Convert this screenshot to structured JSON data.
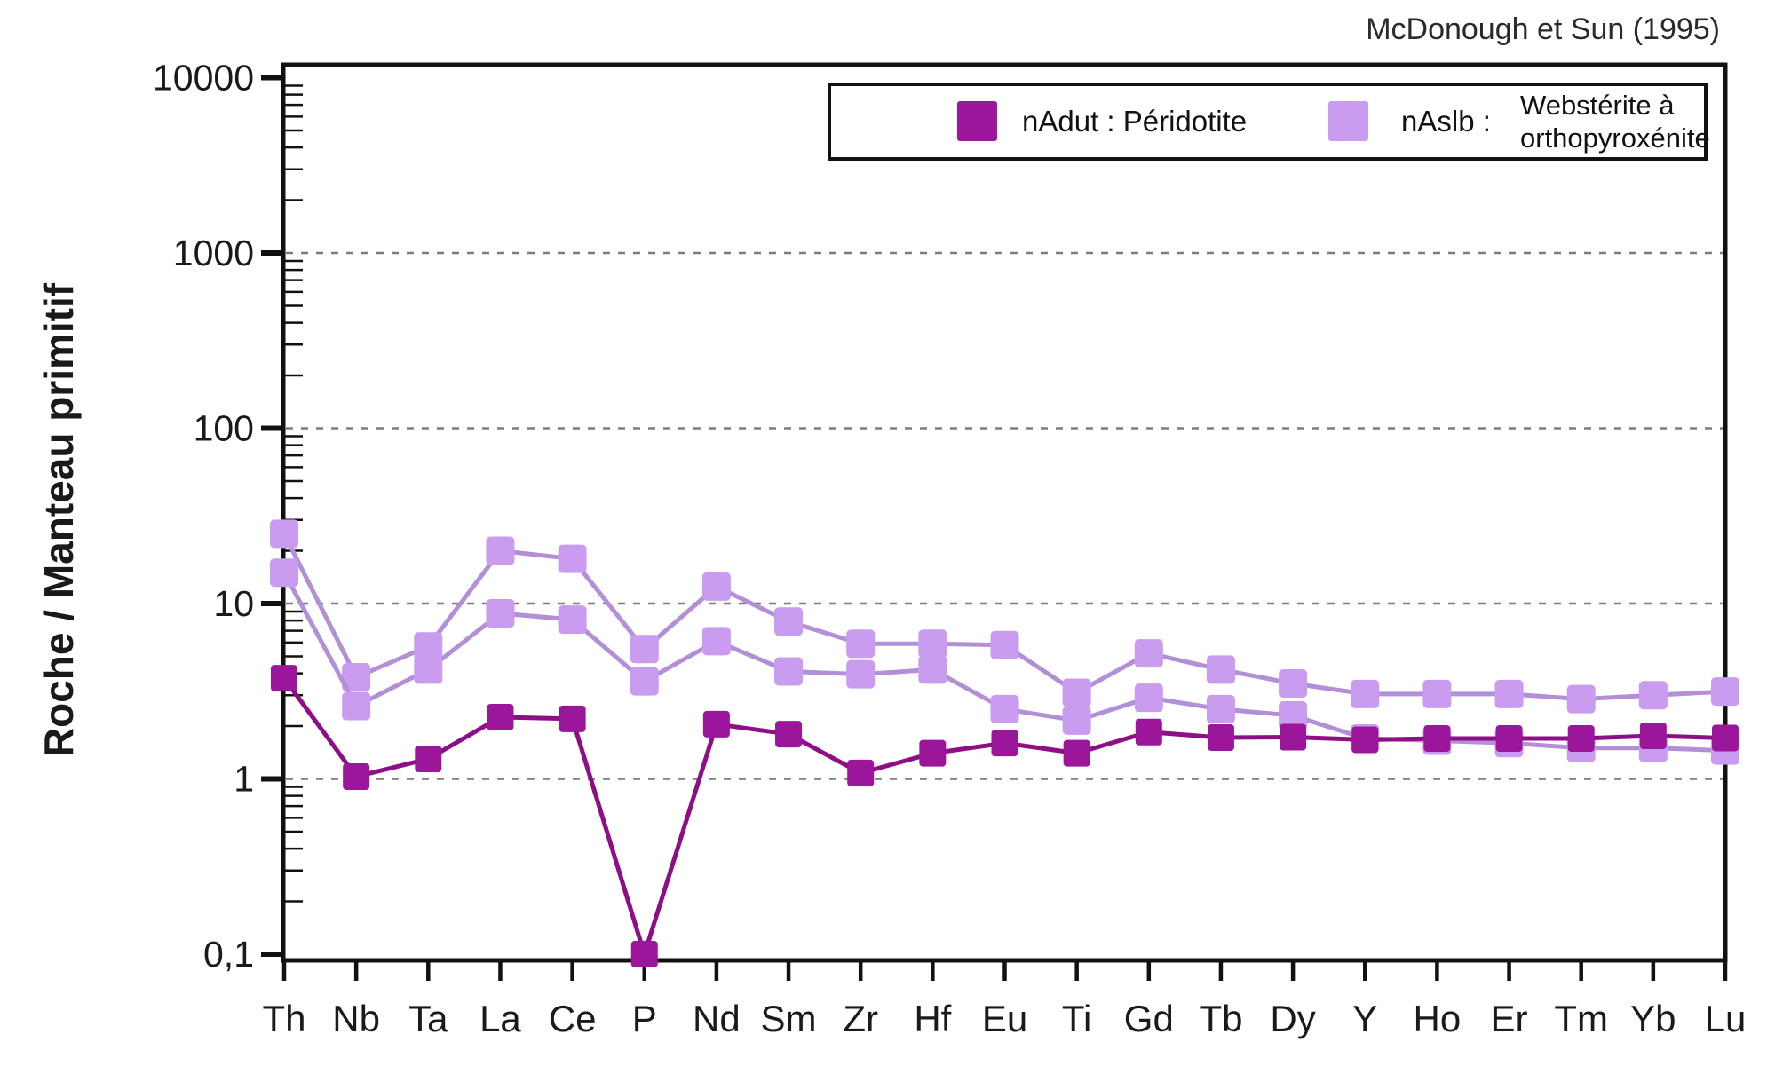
{
  "page": {
    "background": "#ffffff"
  },
  "attribution": "McDonough et Sun (1995)",
  "y_axis_title": "Roche / Manteau primitif",
  "legend": {
    "item1": {
      "label": "nAdut : Péridotite"
    },
    "item2": {
      "code": "nAslb :",
      "name_line1": "Webstérite à",
      "name_line2": "orthopyroxénite"
    }
  },
  "colors": {
    "dark_marker": "#9C169C",
    "dark_line": "#8D0E85",
    "light_marker": "#C99CEF",
    "light_line": "#B28FD6",
    "axis": "#111111",
    "grid": "#7d7d7d",
    "text": "#1a1a1a"
  },
  "chart_data": {
    "type": "line",
    "yscale": "log",
    "ylabel": "Roche / Manteau primitif",
    "annotation": "McDonough et Sun (1995)",
    "grid": "dotted horizontal gridlines",
    "legend_position": "top",
    "ylim": [
      0.09,
      11500
    ],
    "x_categories": [
      "Th",
      "Nb",
      "Ta",
      "La",
      "Ce",
      "P",
      "Nd",
      "Sm",
      "Zr",
      "Hf",
      "Eu",
      "Ti",
      "Gd",
      "Tb",
      "Dy",
      "Y",
      "Ho",
      "Er",
      "Tm",
      "Yb",
      "Lu"
    ],
    "y_tick_values": [
      10000,
      1000,
      100,
      10,
      1,
      0.1
    ],
    "y_tick_labels": [
      "10000",
      "1000",
      "100",
      "10",
      "1",
      "0,1"
    ],
    "gridline_values": [
      1000,
      100,
      10,
      1
    ],
    "series": [
      {
        "id": "nAslb_line_a",
        "legend": "nAslb : Webstérite à orthopyroxénite",
        "palette": "light",
        "values": [
          25,
          3.8,
          5.7,
          20,
          18,
          5.5,
          12.5,
          7.9,
          5.9,
          5.9,
          5.8,
          3.1,
          5.2,
          4.2,
          3.5,
          3.05,
          3.05,
          3.05,
          2.85,
          3.0,
          3.15
        ]
      },
      {
        "id": "nAslb_line_b",
        "legend": "nAslb : Webstérite à orthopyroxénite",
        "palette": "light",
        "values": [
          15,
          2.6,
          4.2,
          8.8,
          8.1,
          3.6,
          6.1,
          4.1,
          3.95,
          4.2,
          2.5,
          2.15,
          2.9,
          2.5,
          2.3,
          1.7,
          1.65,
          1.6,
          1.5,
          1.5,
          1.45
        ]
      },
      {
        "id": "nAdut",
        "legend": "nAdut : Péridotite",
        "palette": "dark",
        "values": [
          3.75,
          1.03,
          1.3,
          2.25,
          2.2,
          0.1,
          2.05,
          1.8,
          1.08,
          1.4,
          1.6,
          1.4,
          1.85,
          1.72,
          1.73,
          1.67,
          1.7,
          1.7,
          1.7,
          1.76,
          1.71
        ]
      }
    ]
  }
}
